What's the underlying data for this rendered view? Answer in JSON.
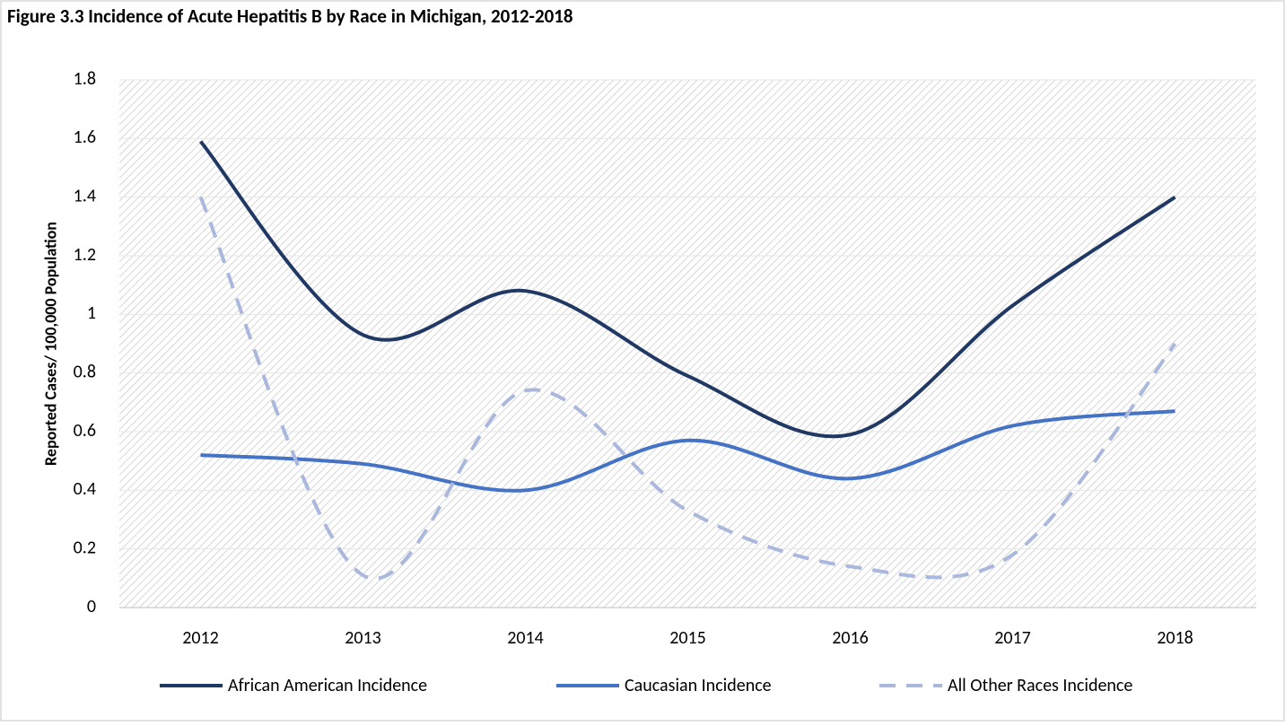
{
  "chart_data": {
    "type": "line",
    "title": "Figure 3.3 Incidence of Acute Hepatitis B by Race in Michigan, 2012-2018",
    "ylabel": "Reported Cases/ 100,000 Population",
    "categories": [
      "2012",
      "2013",
      "2014",
      "2015",
      "2016",
      "2017",
      "2018"
    ],
    "series": [
      {
        "name": "African American Incidence",
        "color": "#203864",
        "dash": false,
        "values": [
          1.59,
          0.93,
          1.08,
          0.79,
          0.59,
          1.03,
          1.4
        ]
      },
      {
        "name": "Caucasian Incidence",
        "color": "#4472c4",
        "dash": false,
        "values": [
          0.52,
          0.49,
          0.4,
          0.57,
          0.44,
          0.62,
          0.67
        ]
      },
      {
        "name": "All Other Races Incidence",
        "color": "#a9b8dc",
        "dash": true,
        "values": [
          1.4,
          0.11,
          0.74,
          0.33,
          0.14,
          0.18,
          0.9
        ]
      }
    ],
    "ylim": [
      0,
      1.8
    ],
    "yticks": [
      0,
      0.2,
      0.4,
      0.6,
      0.8,
      1,
      1.2,
      1.4,
      1.6,
      1.8
    ],
    "grid": true,
    "smooth": true,
    "legend": "bottom"
  }
}
